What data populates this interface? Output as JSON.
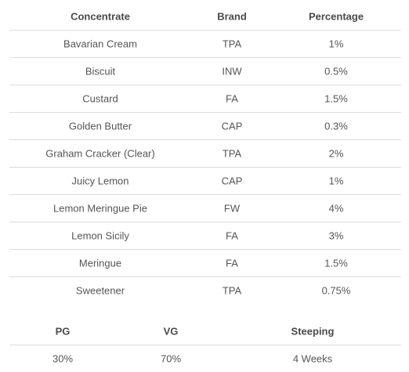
{
  "table": {
    "header": [
      "Concentrate",
      "Brand",
      "Percentage"
    ],
    "rows": [
      [
        "Bavarian Cream",
        "TPA",
        "1%"
      ],
      [
        "Biscuit",
        "INW",
        "0.5%"
      ],
      [
        "Custard",
        "FA",
        "1.5%"
      ],
      [
        "Golden Butter",
        "CAP",
        "0.3%"
      ],
      [
        "Graham Cracker (Clear)",
        "TPA",
        "2%"
      ],
      [
        "Juicy Lemon",
        "CAP",
        "1%"
      ],
      [
        "Lemon Meringue Pie",
        "FW",
        "4%"
      ],
      [
        "Lemon Sicily",
        "FA",
        "3%"
      ],
      [
        "Meringue",
        "FA",
        "1.5%"
      ],
      [
        "Sweetener",
        "TPA",
        "0.75%"
      ]
    ]
  },
  "summary": {
    "header": [
      "PG",
      "VG",
      "Steeping"
    ],
    "rows": [
      [
        "30%",
        "70%",
        "4 Weeks"
      ]
    ]
  }
}
